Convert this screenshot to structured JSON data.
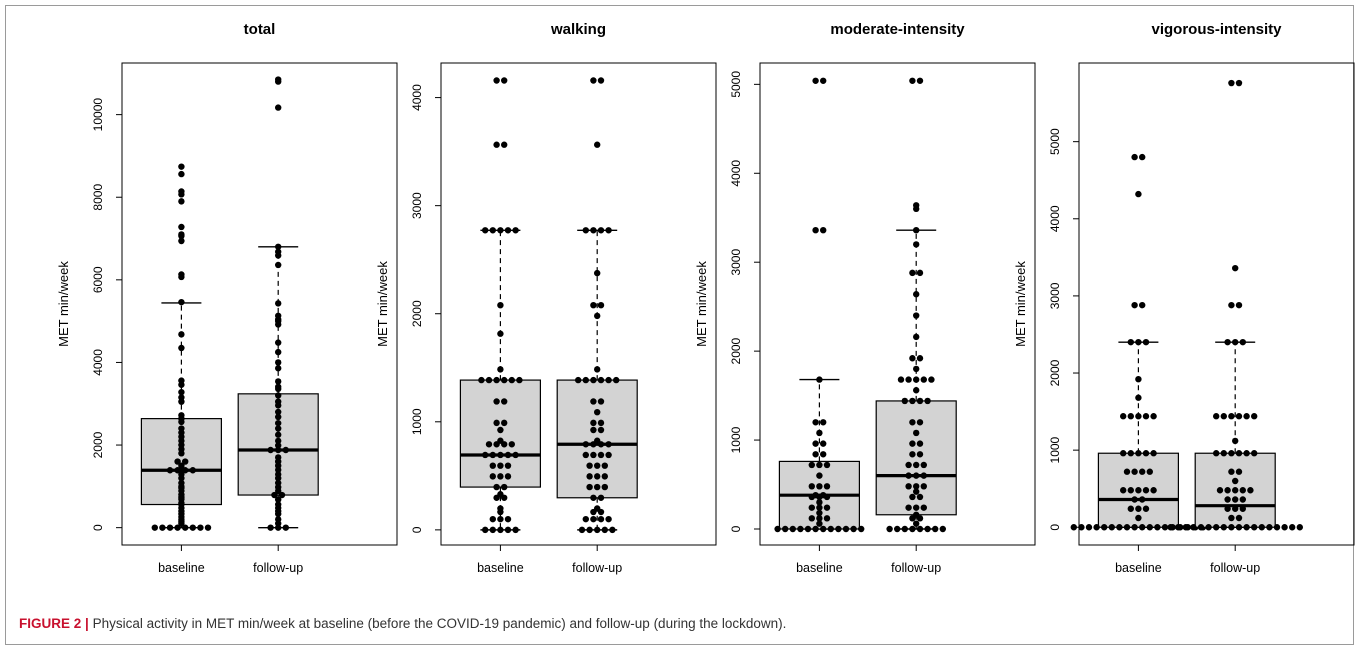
{
  "caption": {
    "label": "FIGURE 2 |",
    "text": "Physical activity in MET min/week at baseline (before the COVID-19 pandemic) and follow-up (during the lockdown)."
  },
  "colors": {
    "box_fill": "#d3d3d3",
    "points": "#000000",
    "caption_label": "#c8102e"
  },
  "chart_data": [
    {
      "type": "box",
      "title": "total",
      "ylabel": "MET min/week",
      "categories": [
        "baseline",
        "follow-up"
      ],
      "ylim": [
        -420,
        11250
      ],
      "yticks": [
        0,
        2000,
        4000,
        6000,
        8000,
        10000
      ],
      "boxes": [
        {
          "category": "baseline",
          "whisker_low": 0,
          "q1": 560,
          "median": 1390,
          "q3": 2640,
          "whisker_high": 5440,
          "points": [
            0,
            0,
            0,
            0,
            0,
            0,
            0,
            0,
            100,
            150,
            200,
            260,
            330,
            400,
            480,
            560,
            600,
            690,
            740,
            800,
            890,
            960,
            1000,
            1080,
            1200,
            1290,
            1390,
            1390,
            1390,
            1390,
            1400,
            1500,
            1600,
            1600,
            1800,
            1900,
            2000,
            2100,
            2200,
            2300,
            2400,
            2560,
            2640,
            2720,
            3050,
            3150,
            3280,
            3460,
            3560,
            4350,
            4680,
            5460,
            6070,
            6130,
            6940,
            7060,
            7100,
            7280,
            7900,
            8070,
            8140,
            8560,
            8740
          ]
        },
        {
          "category": "follow-up",
          "whisker_low": 0,
          "q1": 790,
          "median": 1880,
          "q3": 3240,
          "whisker_high": 6800,
          "points": [
            0,
            0,
            0,
            100,
            200,
            330,
            400,
            480,
            560,
            680,
            790,
            790,
            890,
            980,
            1080,
            1200,
            1290,
            1400,
            1500,
            1600,
            1700,
            1880,
            1880,
            1880,
            1990,
            2100,
            2250,
            2400,
            2530,
            2680,
            2800,
            2960,
            3050,
            3200,
            3360,
            3410,
            3540,
            3860,
            4000,
            4250,
            4480,
            4920,
            5000,
            5040,
            5130,
            5430,
            6360,
            6590,
            6680,
            6800,
            10170,
            10800,
            10850
          ]
        }
      ]
    },
    {
      "type": "box",
      "title": "walking",
      "ylabel": "MET min/week",
      "categories": [
        "baseline",
        "follow-up"
      ],
      "ylim": [
        -140,
        4320
      ],
      "yticks": [
        0,
        1000,
        2000,
        3000,
        4000
      ],
      "boxes": [
        {
          "category": "baseline",
          "whisker_low": 0,
          "q1": 396,
          "median": 693,
          "q3": 1386,
          "whisker_high": 2772,
          "points": [
            0,
            0,
            0,
            0,
            0,
            99,
            99,
            99,
            165,
            198,
            297,
            297,
            330,
            396,
            396,
            495,
            495,
            495,
            594,
            594,
            594,
            693,
            693,
            693,
            693,
            693,
            792,
            792,
            792,
            792,
            825,
            924,
            990,
            990,
            1188,
            1188,
            1386,
            1386,
            1386,
            1386,
            1386,
            1386,
            1485,
            1815,
            2079,
            2772,
            2772,
            2772,
            2772,
            2772,
            3564,
            3564,
            4158,
            4158
          ]
        },
        {
          "category": "follow-up",
          "whisker_low": 0,
          "q1": 297,
          "median": 792,
          "q3": 1386,
          "whisker_high": 2772,
          "points": [
            0,
            0,
            0,
            0,
            0,
            99,
            99,
            99,
            99,
            165,
            165,
            198,
            297,
            297,
            396,
            396,
            396,
            495,
            495,
            495,
            594,
            594,
            594,
            693,
            693,
            693,
            693,
            792,
            792,
            792,
            792,
            825,
            924,
            924,
            990,
            990,
            1089,
            1188,
            1188,
            1386,
            1386,
            1386,
            1386,
            1386,
            1386,
            1485,
            1980,
            2079,
            2079,
            2376,
            2772,
            2772,
            2772,
            2772,
            3564,
            4158,
            4158
          ]
        }
      ]
    },
    {
      "type": "box",
      "title": "moderate-intensity",
      "ylabel": "MET min/week",
      "categories": [
        "baseline",
        "follow-up"
      ],
      "ylim": [
        -180,
        5240
      ],
      "yticks": [
        0,
        1000,
        2000,
        3000,
        4000,
        5000
      ],
      "boxes": [
        {
          "category": "baseline",
          "whisker_low": 0,
          "q1": 0,
          "median": 380,
          "q3": 760,
          "whisker_high": 1680,
          "points": [
            0,
            0,
            0,
            0,
            0,
            0,
            0,
            0,
            0,
            0,
            0,
            0,
            60,
            120,
            120,
            120,
            180,
            240,
            240,
            240,
            300,
            360,
            360,
            360,
            380,
            380,
            480,
            480,
            480,
            600,
            720,
            720,
            720,
            840,
            840,
            960,
            960,
            1080,
            1200,
            1200,
            1680,
            3360,
            3360,
            5040,
            5040
          ]
        },
        {
          "category": "follow-up",
          "whisker_low": 0,
          "q1": 160,
          "median": 600,
          "q3": 1440,
          "whisker_high": 3360,
          "points": [
            0,
            0,
            0,
            0,
            0,
            0,
            0,
            0,
            60,
            120,
            120,
            160,
            240,
            240,
            240,
            360,
            360,
            420,
            480,
            480,
            480,
            600,
            600,
            600,
            720,
            720,
            720,
            840,
            840,
            960,
            960,
            1080,
            1200,
            1200,
            1440,
            1440,
            1440,
            1440,
            1560,
            1680,
            1680,
            1680,
            1680,
            1680,
            1800,
            1920,
            1920,
            2160,
            2400,
            2640,
            2880,
            2880,
            3200,
            3360,
            3600,
            3640,
            5040,
            5040
          ]
        }
      ]
    },
    {
      "type": "box",
      "title": "vigorous-intensity",
      "ylabel": "MET min/week",
      "categories": [
        "baseline",
        "follow-up"
      ],
      "ylim": [
        -230,
        6020
      ],
      "yticks": [
        0,
        1000,
        2000,
        3000,
        4000,
        5000
      ],
      "boxes": [
        {
          "category": "baseline",
          "whisker_low": 0,
          "q1": 0,
          "median": 360,
          "q3": 960,
          "whisker_high": 2400,
          "points": [
            0,
            0,
            0,
            0,
            0,
            0,
            0,
            0,
            0,
            0,
            0,
            0,
            0,
            0,
            0,
            0,
            0,
            0,
            120,
            240,
            240,
            240,
            360,
            360,
            480,
            480,
            480,
            480,
            480,
            720,
            720,
            720,
            720,
            960,
            960,
            960,
            960,
            960,
            1440,
            1440,
            1440,
            1440,
            1440,
            1680,
            1920,
            2400,
            2400,
            2400,
            2880,
            2880,
            4320,
            4800,
            4800
          ]
        },
        {
          "category": "follow-up",
          "whisker_low": 0,
          "q1": 0,
          "median": 280,
          "q3": 960,
          "whisker_high": 2400,
          "points": [
            0,
            0,
            0,
            0,
            0,
            0,
            0,
            0,
            0,
            0,
            0,
            0,
            0,
            0,
            0,
            0,
            0,
            0,
            120,
            120,
            240,
            240,
            240,
            360,
            360,
            360,
            480,
            480,
            480,
            480,
            480,
            600,
            720,
            720,
            960,
            960,
            960,
            960,
            960,
            960,
            1120,
            1440,
            1440,
            1440,
            1440,
            1440,
            1440,
            2400,
            2400,
            2400,
            2880,
            2880,
            3360,
            5760,
            5760
          ]
        }
      ]
    }
  ]
}
